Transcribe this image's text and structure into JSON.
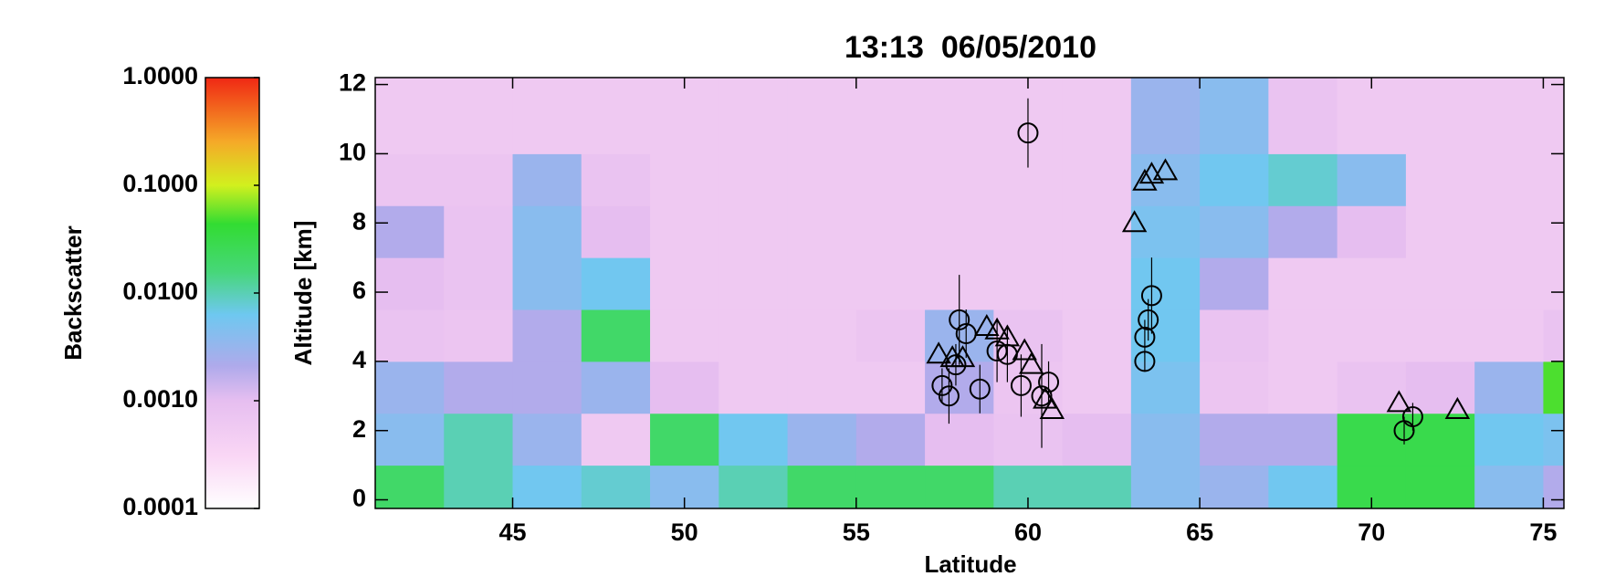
{
  "chart_data": {
    "type": "scatter",
    "title": "13:13  06/05/2010",
    "x_label": "Latitude",
    "y_label": "Altitude [km]",
    "colorbar_label": "Backscatter",
    "xlim": [
      41,
      75.6
    ],
    "ylim": [
      -0.25,
      12.2
    ],
    "xticks": [
      45,
      50,
      55,
      60,
      65,
      70,
      75
    ],
    "yticks": [
      0,
      2,
      4,
      6,
      8,
      10,
      12
    ],
    "clim": [
      0.0001,
      1
    ],
    "clog": true,
    "cticks": [
      {
        "value": 0.0001,
        "label": "0.0001"
      },
      {
        "value": 0.001,
        "label": "0.0010"
      },
      {
        "value": 0.01,
        "label": "0.0100"
      },
      {
        "value": 0.1,
        "label": "0.1000"
      },
      {
        "value": 1,
        "label": "1.0000"
      }
    ],
    "heatmap": {
      "x_edges": [
        41,
        43,
        45,
        47,
        49,
        51,
        53,
        55,
        57,
        59,
        61,
        63,
        65,
        67,
        69,
        71,
        73,
        75,
        75.6
      ],
      "y_edges": [
        -0.25,
        1,
        2.5,
        4,
        5.5,
        7,
        8.5,
        10,
        12.2
      ],
      "values": [
        [
          0.02,
          0.01,
          0.006,
          0.008,
          0.004,
          0.01,
          0.02,
          0.02,
          0.02,
          0.01,
          0.01,
          0.004,
          0.003,
          0.006,
          0.03,
          0.03,
          0.004,
          0.002
        ],
        [
          0.004,
          0.01,
          0.003,
          0.0006,
          0.02,
          0.006,
          0.003,
          0.002,
          0.001,
          0.0008,
          0.001,
          0.004,
          0.002,
          0.002,
          0.03,
          0.03,
          0.006,
          0.005
        ],
        [
          0.003,
          0.002,
          0.002,
          0.003,
          0.001,
          0.0006,
          0.0006,
          0.0006,
          0.002,
          0.0007,
          0.0006,
          0.005,
          0.0007,
          0.0006,
          0.0008,
          0.001,
          0.003,
          0.05
        ],
        [
          0.0008,
          0.0007,
          0.002,
          0.02,
          0.0006,
          0.0006,
          0.0006,
          0.0007,
          0.003,
          0.0008,
          0.0006,
          0.006,
          0.0008,
          0.0006,
          0.0006,
          0.0006,
          0.0006,
          0.0008
        ],
        [
          0.001,
          0.0008,
          0.004,
          0.006,
          0.0006,
          0.0006,
          0.0006,
          0.0006,
          0.0006,
          0.0006,
          0.0006,
          0.006,
          0.002,
          0.0006,
          0.0006,
          0.0006,
          0.0006,
          0.0006
        ],
        [
          0.002,
          0.0008,
          0.004,
          0.001,
          0.0006,
          0.0006,
          0.0006,
          0.0006,
          0.0006,
          0.0006,
          0.0006,
          0.005,
          0.004,
          0.002,
          0.001,
          0.0006,
          0.0006,
          0.0006
        ],
        [
          0.0007,
          0.0007,
          0.003,
          0.0008,
          0.0006,
          0.0006,
          0.0006,
          0.0006,
          0.0006,
          0.0006,
          0.0006,
          0.004,
          0.006,
          0.008,
          0.004,
          0.0006,
          0.0006,
          0.0006
        ],
        [
          0.0006,
          0.0006,
          0.0006,
          0.0006,
          0.0006,
          0.0006,
          0.0006,
          0.0006,
          0.0006,
          0.0006,
          0.0006,
          0.003,
          0.004,
          0.0008,
          0.0006,
          0.0006,
          0.0006,
          0.0006
        ]
      ]
    },
    "series": [
      {
        "marker": "circle",
        "color": "#000000",
        "x": [
          60.0,
          58.0,
          58.2,
          57.9,
          57.5,
          57.7,
          58.6,
          59.1,
          59.4,
          59.8,
          60.4,
          60.6,
          63.4,
          63.4,
          63.5,
          63.6,
          70.95,
          71.2
        ],
        "values": [
          10.6,
          5.2,
          4.8,
          3.9,
          3.3,
          3.0,
          3.2,
          4.3,
          4.2,
          3.3,
          3.0,
          3.4,
          4.0,
          4.7,
          5.2,
          5.9,
          2.0,
          2.4
        ],
        "errors": [
          1.0,
          1.3,
          0.7,
          0.6,
          0.5,
          0.8,
          0.7,
          0.9,
          0.8,
          0.9,
          1.5,
          0.6,
          0.3,
          0.5,
          0.6,
          1.1,
          0.4,
          0.4
        ]
      },
      {
        "marker": "triangle",
        "color": "#000000",
        "x": [
          57.4,
          57.8,
          58.1,
          58.8,
          59.1,
          59.4,
          59.9,
          60.1,
          60.5,
          60.7,
          63.1,
          63.4,
          63.6,
          64.0,
          70.8,
          72.5
        ],
        "values": [
          4.2,
          4.1,
          4.1,
          5.0,
          4.9,
          4.7,
          4.3,
          3.9,
          2.9,
          2.6,
          8.0,
          9.2,
          9.4,
          9.5,
          2.8,
          2.6
        ]
      }
    ]
  }
}
